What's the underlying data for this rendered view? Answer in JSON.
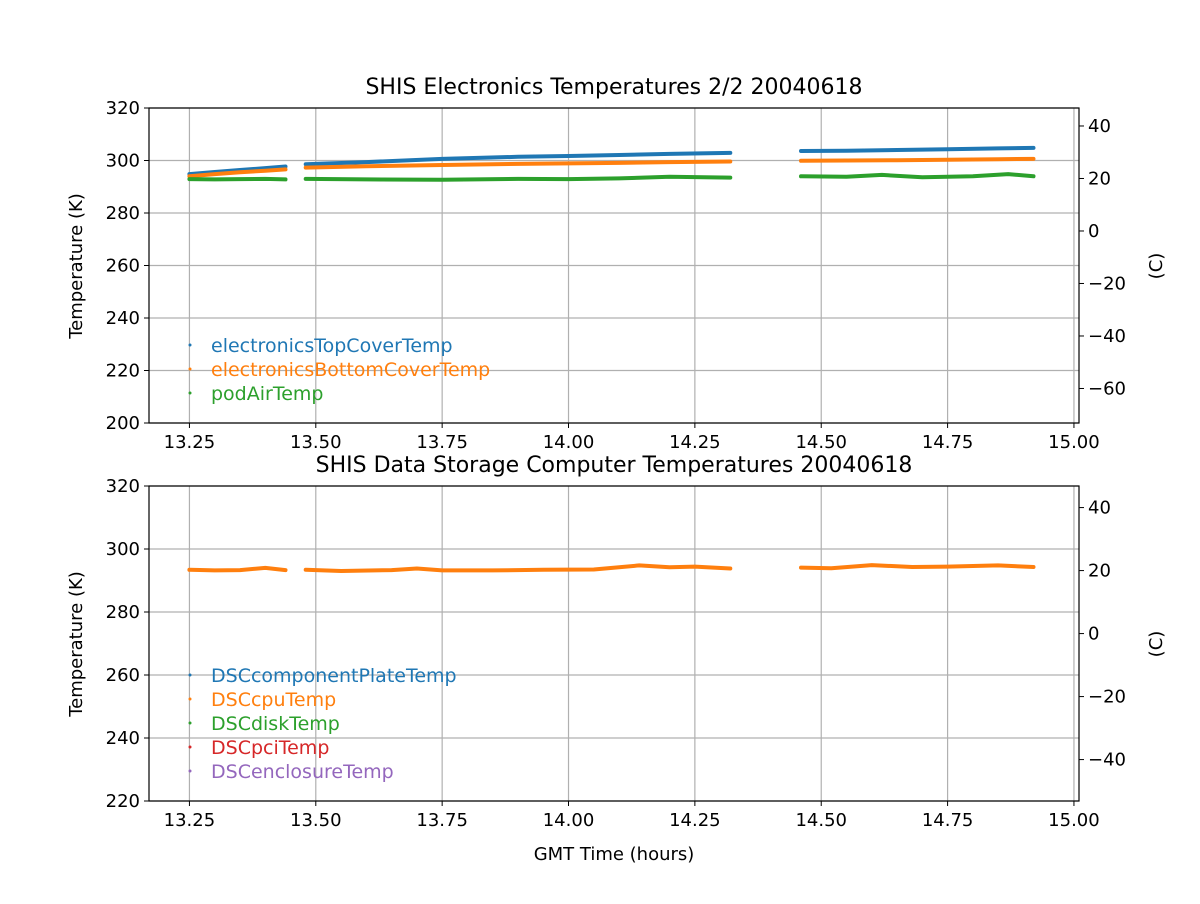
{
  "chart_data": [
    {
      "type": "scatter",
      "title": "SHIS Electronics Temperatures 2/2 20040618",
      "xlabel": "",
      "ylabel": "Temperature (K)",
      "y2label": "(C)",
      "xlim": [
        13.17,
        15.01
      ],
      "ylim": [
        200,
        320
      ],
      "y2lim": [
        -73.15,
        46.85
      ],
      "xticks": [
        "13.25",
        "13.50",
        "13.75",
        "14.00",
        "14.25",
        "14.50",
        "14.75",
        "15.00"
      ],
      "yticks": [
        "200",
        "220",
        "240",
        "260",
        "280",
        "300",
        "320"
      ],
      "y2ticks": [
        "−60",
        "−40",
        "−20",
        "0",
        "20",
        "40"
      ],
      "grid": true,
      "legend_location": "lower-left",
      "series": [
        {
          "name": "electronicsTopCoverTemp",
          "color": "#1f77b4",
          "segments": [
            [
              [
                13.25,
                294.8
              ],
              [
                13.3,
                295.6
              ],
              [
                13.35,
                296.4
              ],
              [
                13.4,
                297.1
              ],
              [
                13.44,
                297.7
              ]
            ],
            [
              [
                13.48,
                298.6
              ],
              [
                13.6,
                299.4
              ],
              [
                13.75,
                300.6
              ],
              [
                13.9,
                301.4
              ],
              [
                14.0,
                301.7
              ],
              [
                14.1,
                302.1
              ],
              [
                14.2,
                302.5
              ],
              [
                14.32,
                302.9
              ]
            ],
            [
              [
                14.46,
                303.6
              ],
              [
                14.55,
                303.7
              ],
              [
                14.65,
                304.0
              ],
              [
                14.75,
                304.3
              ],
              [
                14.85,
                304.6
              ],
              [
                14.92,
                304.8
              ]
            ]
          ]
        },
        {
          "name": "electronicsBottomCoverTemp",
          "color": "#ff7f0e",
          "segments": [
            [
              [
                13.25,
                294.0
              ],
              [
                13.3,
                294.8
              ],
              [
                13.35,
                295.5
              ],
              [
                13.4,
                296.1
              ],
              [
                13.44,
                296.6
              ]
            ],
            [
              [
                13.48,
                297.3
              ],
              [
                13.6,
                297.8
              ],
              [
                13.75,
                298.3
              ],
              [
                13.9,
                298.7
              ],
              [
                14.0,
                298.9
              ],
              [
                14.1,
                299.1
              ],
              [
                14.2,
                299.4
              ],
              [
                14.32,
                299.6
              ]
            ],
            [
              [
                14.46,
                299.9
              ],
              [
                14.55,
                300.0
              ],
              [
                14.65,
                300.1
              ],
              [
                14.75,
                300.3
              ],
              [
                14.85,
                300.5
              ],
              [
                14.92,
                300.6
              ]
            ]
          ]
        },
        {
          "name": "podAirTemp",
          "color": "#2ca02c",
          "segments": [
            [
              [
                13.25,
                292.9
              ],
              [
                13.3,
                292.8
              ],
              [
                13.35,
                292.9
              ],
              [
                13.4,
                293.0
              ],
              [
                13.44,
                292.8
              ]
            ],
            [
              [
                13.48,
                293.0
              ],
              [
                13.6,
                292.8
              ],
              [
                13.75,
                292.7
              ],
              [
                13.9,
                293.0
              ],
              [
                14.0,
                292.9
              ],
              [
                14.1,
                293.2
              ],
              [
                14.2,
                293.8
              ],
              [
                14.32,
                293.5
              ]
            ],
            [
              [
                14.46,
                294.0
              ],
              [
                14.55,
                293.8
              ],
              [
                14.62,
                294.5
              ],
              [
                14.7,
                293.6
              ],
              [
                14.8,
                294.0
              ],
              [
                14.87,
                294.8
              ],
              [
                14.92,
                294.0
              ]
            ]
          ]
        }
      ]
    },
    {
      "type": "scatter",
      "title": "SHIS Data Storage Computer Temperatures 20040618",
      "xlabel": "GMT Time (hours)",
      "ylabel": "Temperature (K)",
      "y2label": "(C)",
      "xlim": [
        13.17,
        15.01
      ],
      "ylim": [
        220,
        320
      ],
      "y2lim": [
        -53.15,
        46.85
      ],
      "xticks": [
        "13.25",
        "13.50",
        "13.75",
        "14.00",
        "14.25",
        "14.50",
        "14.75",
        "15.00"
      ],
      "yticks": [
        "220",
        "240",
        "260",
        "280",
        "300",
        "320"
      ],
      "y2ticks": [
        "−40",
        "−20",
        "0",
        "20",
        "40"
      ],
      "grid": true,
      "legend_location": "lower-left",
      "series": [
        {
          "name": "DSCcomponentPlateTemp",
          "color": "#1f77b4",
          "segments": []
        },
        {
          "name": "DSCcpuTemp",
          "color": "#ff7f0e",
          "segments": [
            [
              [
                13.25,
                293.4
              ],
              [
                13.3,
                293.2
              ],
              [
                13.35,
                293.3
              ],
              [
                13.4,
                294.0
              ],
              [
                13.44,
                293.3
              ]
            ],
            [
              [
                13.48,
                293.4
              ],
              [
                13.55,
                293.0
              ],
              [
                13.65,
                293.3
              ],
              [
                13.7,
                293.8
              ],
              [
                13.75,
                293.2
              ],
              [
                13.85,
                293.2
              ],
              [
                13.95,
                293.4
              ],
              [
                14.05,
                293.5
              ],
              [
                14.14,
                294.8
              ],
              [
                14.2,
                294.2
              ],
              [
                14.25,
                294.4
              ],
              [
                14.32,
                293.8
              ]
            ],
            [
              [
                14.46,
                294.1
              ],
              [
                14.52,
                293.9
              ],
              [
                14.6,
                294.9
              ],
              [
                14.68,
                294.3
              ],
              [
                14.75,
                294.4
              ],
              [
                14.85,
                294.8
              ],
              [
                14.92,
                294.3
              ]
            ]
          ]
        },
        {
          "name": "DSCdiskTemp",
          "color": "#2ca02c",
          "segments": []
        },
        {
          "name": "DSCpciTemp",
          "color": "#d62728",
          "segments": []
        },
        {
          "name": "DSCenclosureTemp",
          "color": "#9467bd",
          "segments": []
        }
      ]
    }
  ]
}
